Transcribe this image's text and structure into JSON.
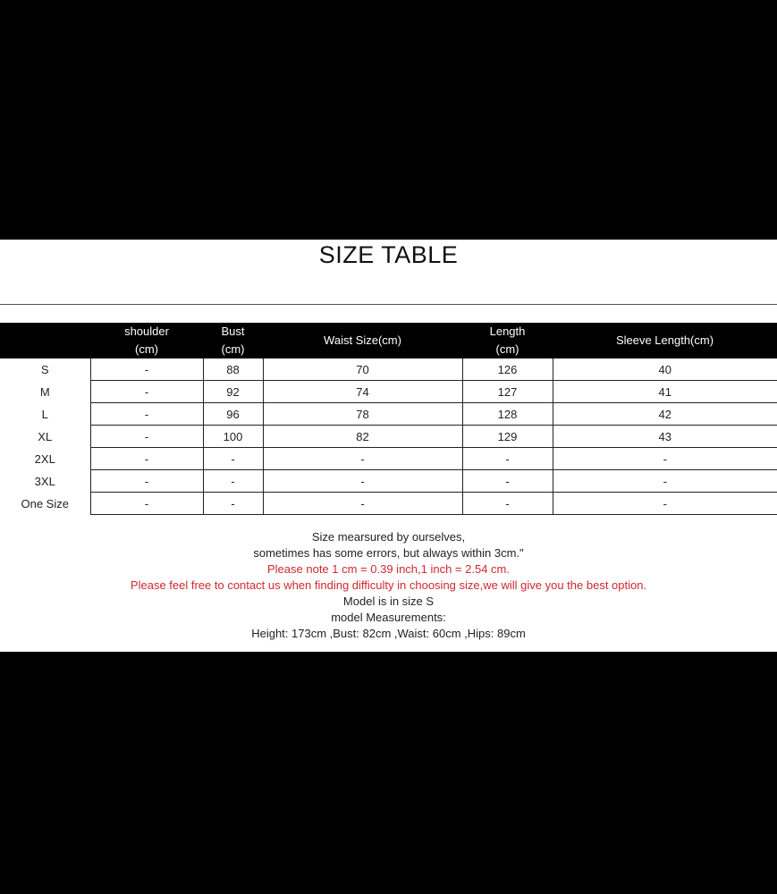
{
  "title": "SIZE TABLE",
  "table": {
    "headers": [
      {
        "line1": "",
        "line2": ""
      },
      {
        "line1": "shoulder",
        "line2": "(cm)"
      },
      {
        "line1": "Bust",
        "line2": "(cm)"
      },
      {
        "line1": "Waist Size(cm)",
        "line2": ""
      },
      {
        "line1": "Length",
        "line2": "(cm)"
      },
      {
        "line1": "Sleeve Length(cm)",
        "line2": ""
      }
    ],
    "rows": [
      [
        "S",
        "-",
        "88",
        "70",
        "126",
        "40"
      ],
      [
        "M",
        "-",
        "92",
        "74",
        "127",
        "41"
      ],
      [
        "L",
        "-",
        "96",
        "78",
        "128",
        "42"
      ],
      [
        "XL",
        "-",
        "100",
        "82",
        "129",
        "43"
      ],
      [
        "2XL",
        "-",
        "-",
        "-",
        "-",
        "-"
      ],
      [
        "3XL",
        "-",
        "-",
        "-",
        "-",
        "-"
      ],
      [
        "One Size",
        "-",
        "-",
        "-",
        "-",
        "-"
      ]
    ]
  },
  "notes": [
    {
      "text": "Size mearsured by ourselves,",
      "color": "#222222"
    },
    {
      "text": "sometimes has some errors, but always within 3cm.\"",
      "color": "#222222"
    },
    {
      "text": "Please note 1 cm = 0.39 inch,1 inch = 2.54 cm.",
      "color": "#d0282e"
    },
    {
      "text": "Please feel free to contact us when finding difficulty in choosing size,we will give you the best option.",
      "color": "#d0282e"
    },
    {
      "text": "Model is in size S",
      "color": "#222222"
    },
    {
      "text": "model Measurements:",
      "color": "#222222"
    },
    {
      "text": "Height: 173cm ,Bust: 82cm ,Waist: 60cm ,Hips: 89cm",
      "color": "#222222"
    }
  ]
}
